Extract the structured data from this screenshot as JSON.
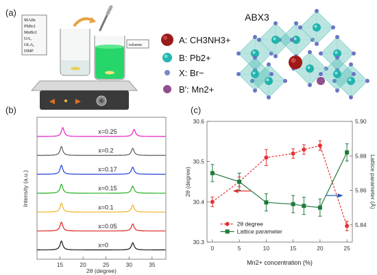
{
  "panels": {
    "a": "(a)",
    "b": "(b)",
    "c": "(c)"
  },
  "setup": {
    "beaker_label_lines": [
      "MABr",
      "PbBr2",
      "MnBr2",
      "OA,",
      "OLA,",
      "DMF"
    ],
    "toluene_label": "toluene"
  },
  "structure": {
    "formula": "ABX3",
    "legend": [
      {
        "key": "A",
        "text": "A: CH3NH3+",
        "color": "#9b1b1b"
      },
      {
        "key": "B",
        "text": "B: Pb2+",
        "color": "#25b7b0"
      },
      {
        "key": "X",
        "text": "X: Br−",
        "color": "#7b86c9"
      },
      {
        "key": "Bp",
        "text": "B′: Mn2+",
        "color": "#8e4f8c"
      }
    ]
  },
  "chart_data": [
    {
      "type": "line",
      "panel": "b",
      "xlabel": "2θ (degree)",
      "ylabel": "Intensity (a.u.)",
      "xlim": [
        10,
        38
      ],
      "xticks": [
        15,
        20,
        25,
        30,
        35
      ],
      "peaks_deg": [
        15.3,
        30.8
      ],
      "series": [
        {
          "name": "x=0.25",
          "color": "#e020c8"
        },
        {
          "name": "x=0.2",
          "color": "#5a5a5a"
        },
        {
          "name": "x=0.17",
          "color": "#1f3fd8"
        },
        {
          "name": "x=0.15",
          "color": "#22b022"
        },
        {
          "name": "x=0.1",
          "color": "#f0b020"
        },
        {
          "name": "x=0.05",
          "color": "#e02020"
        },
        {
          "name": "x=0",
          "color": "#111111"
        }
      ]
    },
    {
      "type": "line",
      "panel": "c",
      "xlabel": "Mn2+ concentration (%)",
      "ylabel_left": "2θ (degree)",
      "ylabel_right": "Lattice parameter (Å)",
      "xlim": [
        -1,
        26
      ],
      "ylim_left": [
        30.3,
        30.6
      ],
      "ylim_right": [
        5.83,
        5.9
      ],
      "xticks": [
        0,
        5,
        10,
        15,
        20,
        25
      ],
      "yticks_left": [
        30.3,
        30.4,
        30.5,
        30.6
      ],
      "yticks_right": [
        5.84,
        5.86,
        5.88,
        5.9
      ],
      "series": [
        {
          "name": "2θ degree",
          "axis": "left",
          "color": "#e53030",
          "style": "dashed",
          "x": [
            0,
            5,
            10,
            15,
            17,
            20,
            25
          ],
          "y": [
            30.4,
            30.45,
            30.51,
            30.52,
            30.53,
            30.54,
            30.34
          ],
          "err": [
            0.012,
            0.012,
            0.02,
            0.012,
            0.012,
            0.012,
            0.012
          ]
        },
        {
          "name": "Lattice parameter",
          "axis": "right",
          "color": "#1f7a3a",
          "style": "solid",
          "x": [
            0,
            5,
            10,
            15,
            17,
            20,
            25
          ],
          "y": [
            5.87,
            5.865,
            5.853,
            5.852,
            5.851,
            5.85,
            5.882
          ],
          "err": [
            0.005,
            0.005,
            0.005,
            0.005,
            0.005,
            0.005,
            0.005
          ]
        }
      ]
    }
  ]
}
